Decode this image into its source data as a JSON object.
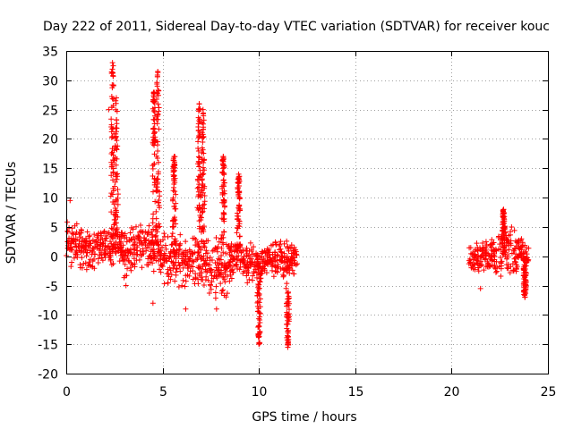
{
  "chart_data": {
    "type": "scatter",
    "title": "Day 222 of 2011, Sidereal Day-to-day VTEC variation (SDTVAR) for receiver kouc",
    "xlabel": "GPS time / hours",
    "ylabel": "SDTVAR / TECUs",
    "xlim": [
      0,
      25
    ],
    "ylim": [
      -20,
      35
    ],
    "x_ticks": [
      0,
      5,
      10,
      15,
      20,
      25
    ],
    "y_ticks": [
      -20,
      -15,
      -10,
      -5,
      0,
      5,
      10,
      15,
      20,
      25,
      30,
      35
    ],
    "grid": true,
    "marker": "+",
    "color": "#ff0000",
    "series": [
      {
        "name": "SDTVAR",
        "band_profile": [
          [
            0.0,
            -3,
            8
          ],
          [
            0.3,
            -4,
            9
          ],
          [
            0.6,
            -3,
            6
          ],
          [
            1.2,
            -3,
            6
          ],
          [
            1.8,
            -2,
            5.5
          ],
          [
            2.4,
            -2,
            5
          ],
          [
            2.9,
            -2,
            5
          ],
          [
            3.0,
            -4,
            5
          ],
          [
            3.5,
            -3,
            6
          ],
          [
            4.0,
            -2,
            6
          ],
          [
            4.5,
            -3,
            7
          ],
          [
            5.0,
            -5,
            5
          ],
          [
            5.5,
            -6,
            5
          ],
          [
            6.0,
            -6,
            4
          ],
          [
            6.5,
            -5,
            4
          ],
          [
            7.0,
            -6,
            4
          ],
          [
            7.5,
            -7,
            4
          ],
          [
            8.0,
            -8,
            4
          ],
          [
            8.4,
            -8,
            3
          ],
          [
            8.5,
            -4,
            3
          ],
          [
            9.0,
            -4,
            2.5
          ],
          [
            9.5,
            -5,
            2.5
          ],
          [
            10.0,
            -5,
            2
          ],
          [
            10.5,
            -3,
            2
          ],
          [
            11.0,
            -5,
            3
          ],
          [
            11.5,
            -4,
            3
          ],
          [
            12.0,
            -3,
            3
          ],
          [
            20.9,
            -3,
            2
          ],
          [
            21.5,
            -3,
            3
          ],
          [
            22.0,
            -3,
            3
          ],
          [
            22.5,
            -4,
            5
          ],
          [
            23.0,
            -4,
            6
          ],
          [
            23.5,
            -3,
            4
          ],
          [
            24.0,
            -4,
            3
          ]
        ],
        "spikes": [
          {
            "x": 2.4,
            "y": 33
          },
          {
            "x": 2.6,
            "y": 27
          },
          {
            "x": 4.55,
            "y": 28
          },
          {
            "x": 4.75,
            "y": 31.5
          },
          {
            "x": 5.6,
            "y": 17
          },
          {
            "x": 6.9,
            "y": 26
          },
          {
            "x": 7.1,
            "y": 25
          },
          {
            "x": 8.15,
            "y": 17
          },
          {
            "x": 8.95,
            "y": 14
          },
          {
            "x": 10.0,
            "y": -15
          },
          {
            "x": 11.5,
            "y": -15.5
          },
          {
            "x": 22.7,
            "y": 8
          },
          {
            "x": 23.8,
            "y": -7
          }
        ],
        "outliers": [
          {
            "x": 4.5,
            "y": -8
          },
          {
            "x": 3.1,
            "y": -5
          },
          {
            "x": 6.2,
            "y": -9
          },
          {
            "x": 7.8,
            "y": -9
          },
          {
            "x": 21.5,
            "y": -5.5
          },
          {
            "x": 2.2,
            "y": 25
          },
          {
            "x": 0.2,
            "y": 9.5
          }
        ]
      }
    ]
  }
}
